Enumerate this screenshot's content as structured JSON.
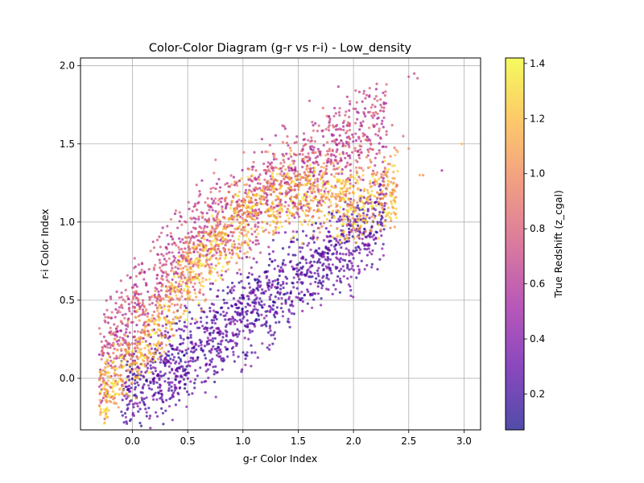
{
  "chart_data": {
    "type": "scatter",
    "title": "Color-Color Diagram (g-r vs r-i) - Low_density",
    "xlabel": "g-r Color Index",
    "ylabel": "r-i Color Index",
    "xlim": [
      -0.47,
      3.15
    ],
    "ylim": [
      -0.33,
      2.05
    ],
    "x_ticks": [
      0.0,
      0.5,
      1.0,
      1.5,
      2.0,
      2.5,
      3.0
    ],
    "x_tick_labels": [
      "0.0",
      "0.5",
      "1.0",
      "1.5",
      "2.0",
      "2.5",
      "3.0"
    ],
    "y_ticks": [
      0.0,
      0.5,
      1.0,
      1.5,
      2.0
    ],
    "y_tick_labels": [
      "0.0",
      "0.5",
      "1.0",
      "1.5",
      "2.0"
    ],
    "grid": true,
    "colorbar": {
      "label": "True Redshift (z_cgal)",
      "range": [
        0.07,
        1.42
      ],
      "ticks": [
        0.2,
        0.4,
        0.6,
        0.8,
        1.0,
        1.2,
        1.4
      ],
      "tick_labels": [
        "0.2",
        "0.4",
        "0.6",
        "0.8",
        "1.0",
        "1.2",
        "1.4"
      ],
      "colormap": "plasma"
    },
    "colormap_stops": [
      "#0d0887",
      "#5c01a6",
      "#9c179e",
      "#cc4778",
      "#ed7953",
      "#fdb42f",
      "#f0f921"
    ],
    "point_alpha": 0.7,
    "populations": [
      {
        "redshift_range": [
          0.1,
          0.45
        ],
        "gr_range": [
          -0.1,
          2.3
        ],
        "ri_centerline": [
          [
            -0.1,
            -0.1
          ],
          [
            0.3,
            0.05
          ],
          [
            0.8,
            0.3
          ],
          [
            1.2,
            0.5
          ],
          [
            1.6,
            0.7
          ],
          [
            2.0,
            0.9
          ],
          [
            2.3,
            1.05
          ]
        ],
        "ri_halfwidth": 0.18
      },
      {
        "redshift_range": [
          0.5,
          0.9
        ],
        "gr_range": [
          -0.3,
          2.3
        ],
        "ri_centerline": [
          [
            -0.3,
            0.1
          ],
          [
            0.0,
            0.4
          ],
          [
            0.5,
            0.85
          ],
          [
            1.0,
            1.1
          ],
          [
            1.5,
            1.3
          ],
          [
            1.9,
            1.5
          ],
          [
            2.2,
            1.6
          ]
        ],
        "ri_halfwidth": 0.2
      },
      {
        "redshift_range": [
          0.9,
          1.4
        ],
        "gr_range": [
          -0.3,
          2.4
        ],
        "ri_centerline": [
          [
            -0.3,
            -0.15
          ],
          [
            -0.1,
            0.05
          ],
          [
            0.2,
            0.3
          ],
          [
            0.6,
            0.75
          ],
          [
            1.0,
            1.05
          ],
          [
            1.5,
            1.2
          ],
          [
            2.0,
            1.1
          ],
          [
            2.4,
            1.2
          ]
        ],
        "ri_halfwidth": 0.15
      }
    ],
    "outlier_points": [
      {
        "x": 2.5,
        "y": 1.93,
        "z": 0.7
      },
      {
        "x": 2.58,
        "y": 1.92,
        "z": 0.7
      },
      {
        "x": 2.55,
        "y": 1.95,
        "z": 0.7
      },
      {
        "x": 2.98,
        "y": 1.5,
        "z": 1.2
      },
      {
        "x": 2.8,
        "y": 1.33,
        "z": 0.5
      },
      {
        "x": 2.6,
        "y": 1.3,
        "z": 1.1
      },
      {
        "x": 2.63,
        "y": 1.3,
        "z": 1.0
      },
      {
        "x": 2.5,
        "y": 1.47,
        "z": 1.0
      },
      {
        "x": 2.45,
        "y": 1.55,
        "z": 0.8
      },
      {
        "x": 2.35,
        "y": 1.62,
        "z": 0.8
      },
      {
        "x": 2.4,
        "y": 1.45,
        "z": 1.1
      }
    ]
  }
}
